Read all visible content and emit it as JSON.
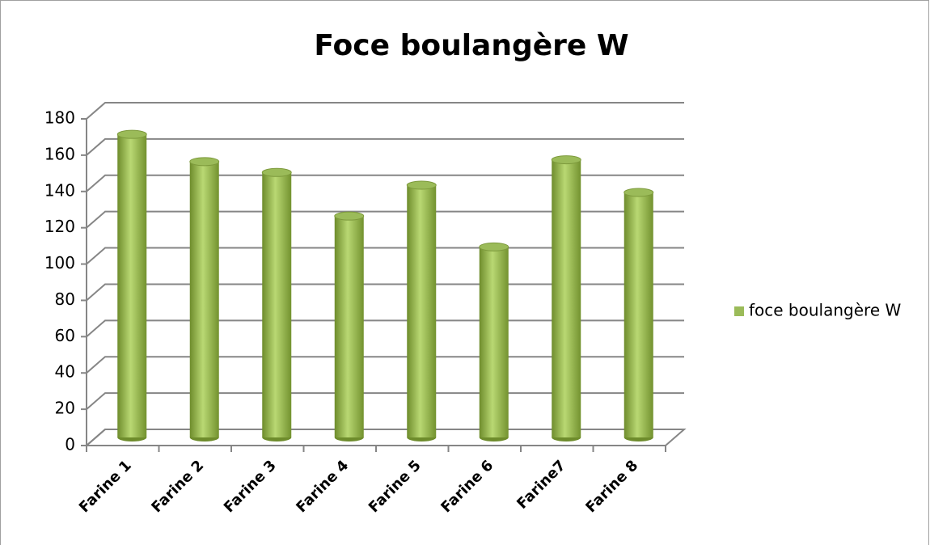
{
  "chart_data": {
    "type": "bar",
    "title": "Foce boulangère W",
    "categories": [
      "Farine 1",
      "Farine 2",
      "Farine 3",
      "Farine 4",
      "Farine 5",
      "Farine 6",
      "Farine7",
      "Farine 8"
    ],
    "series": [
      {
        "name": "foce boulangère W",
        "color": "#9bbb59",
        "values": [
          167,
          152,
          146,
          122,
          139,
          105,
          153,
          135
        ]
      }
    ],
    "ylim": [
      0,
      180
    ],
    "yticks": [
      0,
      20,
      40,
      60,
      80,
      100,
      120,
      140,
      160,
      180
    ],
    "grid": true,
    "legend": "right"
  }
}
